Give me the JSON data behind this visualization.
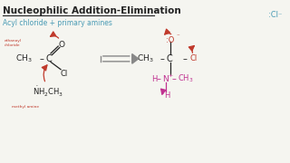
{
  "title": "Nucleophilic Addition-Elimination",
  "subtitle": "Acyl chloride + primary amines",
  "top_right_label": ":Cl⁻",
  "bg_color": "#f5f5f0",
  "title_color": "#222222",
  "subtitle_color": "#4a9bb5",
  "black": "#222222",
  "red": "#c0392b",
  "blue": "#4a9bb5",
  "magenta": "#c03090",
  "small_label_color": "#c0392b"
}
